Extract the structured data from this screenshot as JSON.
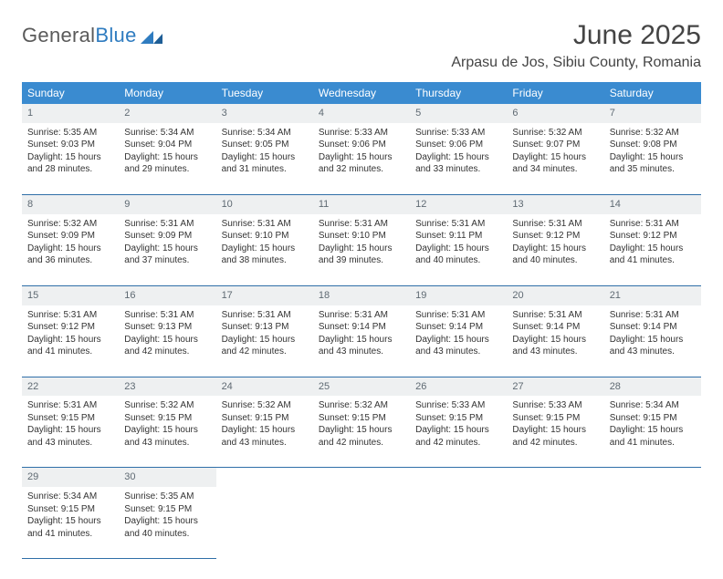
{
  "brand": {
    "name_part1": "General",
    "name_part2": "Blue",
    "mark_color": "#2f7cc0",
    "text_gray": "#5a5a5a"
  },
  "title": "June 2025",
  "location": "Arpasu de Jos, Sibiu County, Romania",
  "colors": {
    "header_bg": "#3a8bd0",
    "header_text": "#ffffff",
    "daynum_bg": "#eef0f1",
    "daynum_text": "#5f6a73",
    "cell_border": "#2f6fa8",
    "body_text": "#333333"
  },
  "weekday_labels": [
    "Sunday",
    "Monday",
    "Tuesday",
    "Wednesday",
    "Thursday",
    "Friday",
    "Saturday"
  ],
  "grid": [
    [
      {
        "num": "1",
        "sunrise": "Sunrise: 5:35 AM",
        "sunset": "Sunset: 9:03 PM",
        "daylight": "Daylight: 15 hours and 28 minutes."
      },
      {
        "num": "2",
        "sunrise": "Sunrise: 5:34 AM",
        "sunset": "Sunset: 9:04 PM",
        "daylight": "Daylight: 15 hours and 29 minutes."
      },
      {
        "num": "3",
        "sunrise": "Sunrise: 5:34 AM",
        "sunset": "Sunset: 9:05 PM",
        "daylight": "Daylight: 15 hours and 31 minutes."
      },
      {
        "num": "4",
        "sunrise": "Sunrise: 5:33 AM",
        "sunset": "Sunset: 9:06 PM",
        "daylight": "Daylight: 15 hours and 32 minutes."
      },
      {
        "num": "5",
        "sunrise": "Sunrise: 5:33 AM",
        "sunset": "Sunset: 9:06 PM",
        "daylight": "Daylight: 15 hours and 33 minutes."
      },
      {
        "num": "6",
        "sunrise": "Sunrise: 5:32 AM",
        "sunset": "Sunset: 9:07 PM",
        "daylight": "Daylight: 15 hours and 34 minutes."
      },
      {
        "num": "7",
        "sunrise": "Sunrise: 5:32 AM",
        "sunset": "Sunset: 9:08 PM",
        "daylight": "Daylight: 15 hours and 35 minutes."
      }
    ],
    [
      {
        "num": "8",
        "sunrise": "Sunrise: 5:32 AM",
        "sunset": "Sunset: 9:09 PM",
        "daylight": "Daylight: 15 hours and 36 minutes."
      },
      {
        "num": "9",
        "sunrise": "Sunrise: 5:31 AM",
        "sunset": "Sunset: 9:09 PM",
        "daylight": "Daylight: 15 hours and 37 minutes."
      },
      {
        "num": "10",
        "sunrise": "Sunrise: 5:31 AM",
        "sunset": "Sunset: 9:10 PM",
        "daylight": "Daylight: 15 hours and 38 minutes."
      },
      {
        "num": "11",
        "sunrise": "Sunrise: 5:31 AM",
        "sunset": "Sunset: 9:10 PM",
        "daylight": "Daylight: 15 hours and 39 minutes."
      },
      {
        "num": "12",
        "sunrise": "Sunrise: 5:31 AM",
        "sunset": "Sunset: 9:11 PM",
        "daylight": "Daylight: 15 hours and 40 minutes."
      },
      {
        "num": "13",
        "sunrise": "Sunrise: 5:31 AM",
        "sunset": "Sunset: 9:12 PM",
        "daylight": "Daylight: 15 hours and 40 minutes."
      },
      {
        "num": "14",
        "sunrise": "Sunrise: 5:31 AM",
        "sunset": "Sunset: 9:12 PM",
        "daylight": "Daylight: 15 hours and 41 minutes."
      }
    ],
    [
      {
        "num": "15",
        "sunrise": "Sunrise: 5:31 AM",
        "sunset": "Sunset: 9:12 PM",
        "daylight": "Daylight: 15 hours and 41 minutes."
      },
      {
        "num": "16",
        "sunrise": "Sunrise: 5:31 AM",
        "sunset": "Sunset: 9:13 PM",
        "daylight": "Daylight: 15 hours and 42 minutes."
      },
      {
        "num": "17",
        "sunrise": "Sunrise: 5:31 AM",
        "sunset": "Sunset: 9:13 PM",
        "daylight": "Daylight: 15 hours and 42 minutes."
      },
      {
        "num": "18",
        "sunrise": "Sunrise: 5:31 AM",
        "sunset": "Sunset: 9:14 PM",
        "daylight": "Daylight: 15 hours and 43 minutes."
      },
      {
        "num": "19",
        "sunrise": "Sunrise: 5:31 AM",
        "sunset": "Sunset: 9:14 PM",
        "daylight": "Daylight: 15 hours and 43 minutes."
      },
      {
        "num": "20",
        "sunrise": "Sunrise: 5:31 AM",
        "sunset": "Sunset: 9:14 PM",
        "daylight": "Daylight: 15 hours and 43 minutes."
      },
      {
        "num": "21",
        "sunrise": "Sunrise: 5:31 AM",
        "sunset": "Sunset: 9:14 PM",
        "daylight": "Daylight: 15 hours and 43 minutes."
      }
    ],
    [
      {
        "num": "22",
        "sunrise": "Sunrise: 5:31 AM",
        "sunset": "Sunset: 9:15 PM",
        "daylight": "Daylight: 15 hours and 43 minutes."
      },
      {
        "num": "23",
        "sunrise": "Sunrise: 5:32 AM",
        "sunset": "Sunset: 9:15 PM",
        "daylight": "Daylight: 15 hours and 43 minutes."
      },
      {
        "num": "24",
        "sunrise": "Sunrise: 5:32 AM",
        "sunset": "Sunset: 9:15 PM",
        "daylight": "Daylight: 15 hours and 43 minutes."
      },
      {
        "num": "25",
        "sunrise": "Sunrise: 5:32 AM",
        "sunset": "Sunset: 9:15 PM",
        "daylight": "Daylight: 15 hours and 42 minutes."
      },
      {
        "num": "26",
        "sunrise": "Sunrise: 5:33 AM",
        "sunset": "Sunset: 9:15 PM",
        "daylight": "Daylight: 15 hours and 42 minutes."
      },
      {
        "num": "27",
        "sunrise": "Sunrise: 5:33 AM",
        "sunset": "Sunset: 9:15 PM",
        "daylight": "Daylight: 15 hours and 42 minutes."
      },
      {
        "num": "28",
        "sunrise": "Sunrise: 5:34 AM",
        "sunset": "Sunset: 9:15 PM",
        "daylight": "Daylight: 15 hours and 41 minutes."
      }
    ],
    [
      {
        "num": "29",
        "sunrise": "Sunrise: 5:34 AM",
        "sunset": "Sunset: 9:15 PM",
        "daylight": "Daylight: 15 hours and 41 minutes."
      },
      {
        "num": "30",
        "sunrise": "Sunrise: 5:35 AM",
        "sunset": "Sunset: 9:15 PM",
        "daylight": "Daylight: 15 hours and 40 minutes."
      },
      {
        "empty": true
      },
      {
        "empty": true
      },
      {
        "empty": true
      },
      {
        "empty": true
      },
      {
        "empty": true
      }
    ]
  ]
}
